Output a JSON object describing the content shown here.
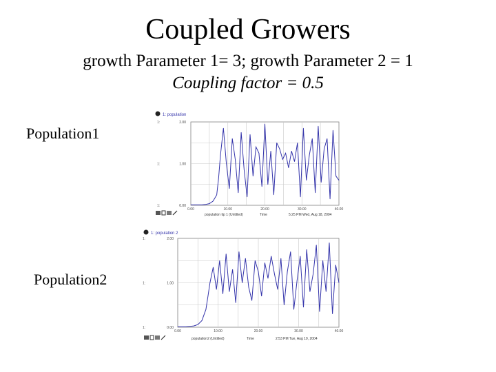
{
  "slide": {
    "title": "Coupled Growers",
    "subtitle_line1": "growth Parameter 1= 3; growth Parameter 2 = 1",
    "subtitle_line2": "Coupling factor = 0.5",
    "label_population1": "Population1",
    "label_population2": "Population2"
  },
  "colors": {
    "series": "#3333aa",
    "grid": "#c8c8c8",
    "axis": "#808080"
  },
  "chart_data": [
    {
      "type": "line",
      "series_label": "1: population",
      "scale_label": "1:",
      "y_ticks": [
        "2.00",
        "1.00",
        "0.00"
      ],
      "x_ticks": [
        "0.00",
        "10.00",
        "20.00",
        "30.00",
        "40.00"
      ],
      "xlim": [
        0,
        40
      ],
      "ylim": [
        0,
        2
      ],
      "footer": {
        "graph_name": "population tip 1 (Untitled)",
        "axis_name": "Time",
        "stamp": "5:25 PM Wed, Aug 18, 2004"
      },
      "series": [
        {
          "x": [
            0,
            1,
            2,
            3,
            4,
            5,
            6,
            7,
            7.5,
            8,
            8.8,
            9.6,
            10.4,
            11.2,
            12,
            12.8,
            13.6,
            14.4,
            15.2,
            16,
            16.8,
            17.6,
            18.4,
            19.2,
            20,
            20.8,
            21.6,
            22.4,
            23.2,
            24,
            24.8,
            25.6,
            26.4,
            27.2,
            28,
            28.8,
            29.6,
            30.4,
            31.2,
            32,
            32.8,
            33.6,
            34.4,
            35.2,
            36,
            36.8,
            37.6,
            38.4,
            39.2,
            40
          ],
          "y": [
            0.01,
            0.01,
            0.01,
            0.01,
            0.02,
            0.04,
            0.1,
            0.25,
            0.65,
            1.2,
            1.85,
            1.0,
            0.4,
            1.6,
            1.1,
            0.3,
            1.75,
            0.85,
            0.2,
            1.7,
            0.7,
            1.4,
            1.25,
            0.45,
            1.95,
            0.5,
            1.3,
            0.25,
            1.5,
            1.35,
            1.1,
            1.25,
            0.9,
            1.3,
            1.05,
            1.5,
            0.2,
            1.85,
            0.6,
            1.2,
            1.6,
            0.3,
            1.9,
            0.55,
            1.35,
            1.6,
            0.15,
            1.8,
            0.7,
            0.6
          ]
        }
      ]
    },
    {
      "type": "line",
      "series_label": "1: population 2",
      "scale_label": "1:",
      "y_ticks": [
        "2.00",
        "1.00",
        "0.00"
      ],
      "x_ticks": [
        "0.00",
        "10.00",
        "20.00",
        "30.00",
        "40.00"
      ],
      "xlim": [
        0,
        40
      ],
      "ylim": [
        0,
        2
      ],
      "footer": {
        "graph_name": "population2 (Untitled)",
        "axis_name": "Time",
        "stamp": "2:53 PM Tue, Aug 10, 2004"
      },
      "series": [
        {
          "x": [
            0,
            1,
            2,
            3,
            4,
            5,
            6,
            7,
            7.5,
            8,
            8.8,
            9.6,
            10.4,
            11.2,
            12,
            12.8,
            13.6,
            14.4,
            15.2,
            16,
            16.8,
            17.6,
            18.4,
            19.2,
            20,
            20.8,
            21.6,
            22.4,
            23.2,
            24,
            24.8,
            25.6,
            26.4,
            27.2,
            28,
            28.8,
            29.6,
            30.4,
            31.2,
            32,
            32.8,
            33.6,
            34.4,
            35.2,
            36,
            36.8,
            37.6,
            38.4,
            39.2,
            40
          ],
          "y": [
            0.01,
            0.01,
            0.01,
            0.02,
            0.03,
            0.06,
            0.15,
            0.4,
            0.7,
            1.0,
            1.35,
            0.85,
            1.5,
            0.75,
            1.65,
            0.8,
            1.3,
            0.55,
            1.7,
            1.0,
            1.55,
            0.9,
            0.6,
            1.5,
            1.25,
            0.7,
            1.45,
            1.1,
            1.6,
            1.2,
            0.85,
            1.55,
            0.5,
            1.25,
            1.7,
            0.4,
            1.05,
            1.6,
            0.45,
            1.75,
            0.8,
            1.2,
            1.85,
            0.35,
            1.5,
            0.8,
            1.9,
            0.3,
            1.4,
            1.0
          ]
        }
      ]
    }
  ]
}
